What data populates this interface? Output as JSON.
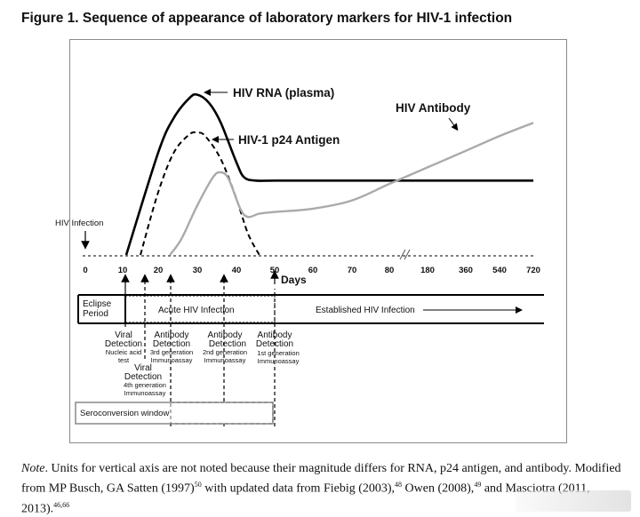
{
  "figure": {
    "title": "Figure 1. Sequence of appearance of laboratory markers for HIV-1 infection"
  },
  "chart_data": {
    "type": "line",
    "xlabel": "Days",
    "x_ticks": [
      "0",
      "10",
      "20",
      "30",
      "40",
      "50",
      "60",
      "70",
      "80",
      "180",
      "360",
      "540",
      "720"
    ],
    "axis_break_between": [
      "80",
      "180"
    ],
    "ylabel": "",
    "series": [
      {
        "name": "HIV RNA (plasma)",
        "style": "solid-black",
        "color": "#000000",
        "points": [
          [
            11,
            0
          ],
          [
            20,
            62
          ],
          [
            24,
            83
          ],
          [
            28,
            95
          ],
          [
            30,
            97
          ],
          [
            33,
            92
          ],
          [
            36,
            80
          ],
          [
            40,
            56
          ],
          [
            42,
            47
          ],
          [
            45,
            45
          ],
          [
            50,
            45
          ],
          [
            60,
            45
          ],
          [
            70,
            45
          ],
          [
            80,
            45
          ],
          [
            180,
            45
          ],
          [
            360,
            45
          ],
          [
            540,
            45
          ],
          [
            720,
            45
          ]
        ]
      },
      {
        "name": "HIV-1 p24 Antigen",
        "style": "dashed-black",
        "color": "#000000",
        "points": [
          [
            15,
            0
          ],
          [
            20,
            38
          ],
          [
            24,
            62
          ],
          [
            28,
            73
          ],
          [
            30,
            74
          ],
          [
            32,
            72
          ],
          [
            36,
            58
          ],
          [
            40,
            34
          ],
          [
            43,
            13
          ],
          [
            46,
            0
          ]
        ]
      },
      {
        "name": "HIV Antibody",
        "style": "solid-gray",
        "color": "#aaaaaa",
        "points": [
          [
            23,
            0
          ],
          [
            26,
            10
          ],
          [
            30,
            30
          ],
          [
            34,
            47
          ],
          [
            36,
            50
          ],
          [
            38,
            46
          ],
          [
            41,
            28
          ],
          [
            43,
            23
          ],
          [
            46,
            25
          ],
          [
            50,
            26
          ],
          [
            60,
            28
          ],
          [
            70,
            33
          ],
          [
            80,
            43
          ],
          [
            180,
            53
          ],
          [
            360,
            63
          ],
          [
            540,
            72
          ],
          [
            720,
            80
          ]
        ]
      }
    ],
    "event_label": "HIV Infection",
    "test_markers": [
      {
        "day": 10,
        "label": "Viral Detection",
        "sub": "Nucleic acid test"
      },
      {
        "day": 15,
        "label": "Viral Detection",
        "sub": "4th generation Immunoassay"
      },
      {
        "day": 22,
        "label": "Antibody Detection",
        "sub": "3rd generation Immunoassay"
      },
      {
        "day": 37,
        "label": "Antibody Detection",
        "sub": "2nd generation Immunoassay"
      },
      {
        "day": 50,
        "label": "Antibody Detection",
        "sub": "1st generation Immunoassay"
      }
    ],
    "phases": {
      "eclipse": "Eclipse Period",
      "acute": "Acute HIV Infection",
      "established": "Established HIV Infection"
    },
    "seroconversion_label": "Seroconversion window"
  },
  "note": {
    "lead": "Note",
    "text1": ". Units for vertical axis are not noted because their magnitude differs for RNA, p24 antigen, and antibody. Modified from MP Busch, GA Satten (1997)",
    "sup1": "50",
    "text2": " with updated data from Fiebig (2003),",
    "sup2": "48",
    "text3": " Owen (2008),",
    "sup3": "49",
    "text4": " and Masciotra (2011, 2013).",
    "sup4": "46,66"
  }
}
